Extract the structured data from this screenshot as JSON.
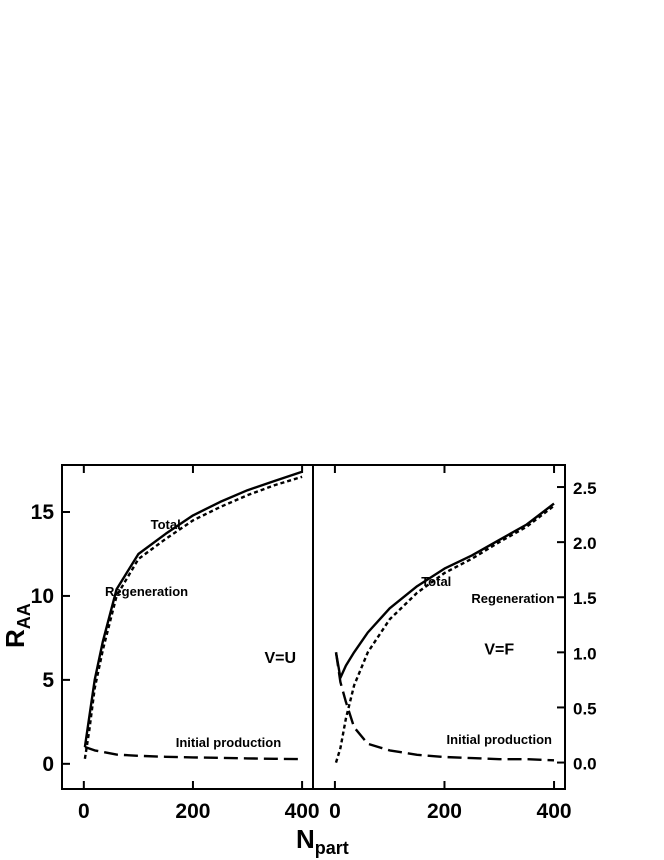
{
  "chart_data": [
    {
      "type": "line",
      "panel_label": "V=U",
      "xlim": [
        -40,
        420
      ],
      "ylim": [
        -1.5,
        17.8
      ],
      "xticks": [
        0,
        200,
        400
      ],
      "yticks": [
        0,
        5,
        10,
        15
      ],
      "ytick_labels": [
        "0",
        "5",
        "10",
        "15"
      ],
      "y_axis_side": "left",
      "series": [
        {
          "name": "Total",
          "style": "solid",
          "x": [
            2,
            10,
            20,
            35,
            60,
            100,
            150,
            200,
            250,
            300,
            350,
            400
          ],
          "y": [
            1.0,
            2.8,
            5.0,
            7.3,
            10.4,
            12.5,
            13.7,
            14.8,
            15.6,
            16.3,
            16.85,
            17.4
          ]
        },
        {
          "name": "Regeneration",
          "style": "dotted",
          "x": [
            2,
            10,
            20,
            35,
            60,
            100,
            150,
            200,
            250,
            300,
            350,
            400
          ],
          "y": [
            0.3,
            2.0,
            4.5,
            6.8,
            10.0,
            12.2,
            13.4,
            14.5,
            15.3,
            16.0,
            16.6,
            17.1
          ]
        },
        {
          "name": "Initial production",
          "style": "dashed",
          "x": [
            2,
            20,
            60,
            100,
            150,
            200,
            250,
            300,
            350,
            400
          ],
          "y": [
            1.0,
            0.8,
            0.55,
            0.48,
            0.42,
            0.38,
            0.35,
            0.32,
            0.3,
            0.28
          ]
        }
      ],
      "annotations": [
        {
          "text": "Total",
          "x": 150,
          "y": 14
        },
        {
          "text": "Regeneration",
          "x": 115,
          "y": 10
        },
        {
          "text": "Initial production",
          "x": 265,
          "y": 1.0
        },
        {
          "text": "V=U",
          "x": 360,
          "y": 6
        }
      ]
    },
    {
      "type": "line",
      "panel_label": "V=F",
      "xlim": [
        -40,
        420
      ],
      "ylim": [
        -0.24,
        2.7
      ],
      "xticks": [
        0,
        200,
        400
      ],
      "yticks": [
        0,
        0.5,
        1.0,
        1.5,
        2.0,
        2.5
      ],
      "ytick_labels": [
        "0.0",
        "0.5",
        "1.0",
        "1.5",
        "2.0",
        "2.5"
      ],
      "y_axis_side": "right",
      "series": [
        {
          "name": "Total",
          "style": "solid",
          "x": [
            2,
            10,
            20,
            35,
            60,
            100,
            150,
            200,
            250,
            300,
            350,
            400
          ],
          "y": [
            1.0,
            0.77,
            0.88,
            1.0,
            1.18,
            1.4,
            1.6,
            1.76,
            1.88,
            2.02,
            2.16,
            2.35
          ]
        },
        {
          "name": "Regeneration",
          "style": "dotted",
          "x": [
            2,
            10,
            20,
            35,
            60,
            100,
            150,
            200,
            250,
            300,
            350,
            400
          ],
          "y": [
            0.0,
            0.13,
            0.4,
            0.7,
            1.0,
            1.3,
            1.54,
            1.72,
            1.85,
            2.0,
            2.14,
            2.33
          ]
        },
        {
          "name": "Initial production",
          "style": "dashed",
          "x": [
            2,
            10,
            20,
            35,
            60,
            100,
            150,
            200,
            250,
            300,
            350,
            400
          ],
          "y": [
            1.0,
            0.73,
            0.55,
            0.32,
            0.17,
            0.11,
            0.07,
            0.05,
            0.04,
            0.03,
            0.03,
            0.02
          ]
        }
      ],
      "annotations": [
        {
          "text": "Total",
          "x": 185,
          "y": 1.6
        },
        {
          "text": "Regeneration",
          "x": 325,
          "y": 1.45
        },
        {
          "text": "Initial production",
          "x": 300,
          "y": 0.17
        },
        {
          "text": "V=F",
          "x": 300,
          "y": 0.98
        }
      ]
    }
  ],
  "axes": {
    "xlabel_main": "N",
    "xlabel_sub": "part",
    "ylabel_main": "R",
    "ylabel_sub": "AA"
  }
}
